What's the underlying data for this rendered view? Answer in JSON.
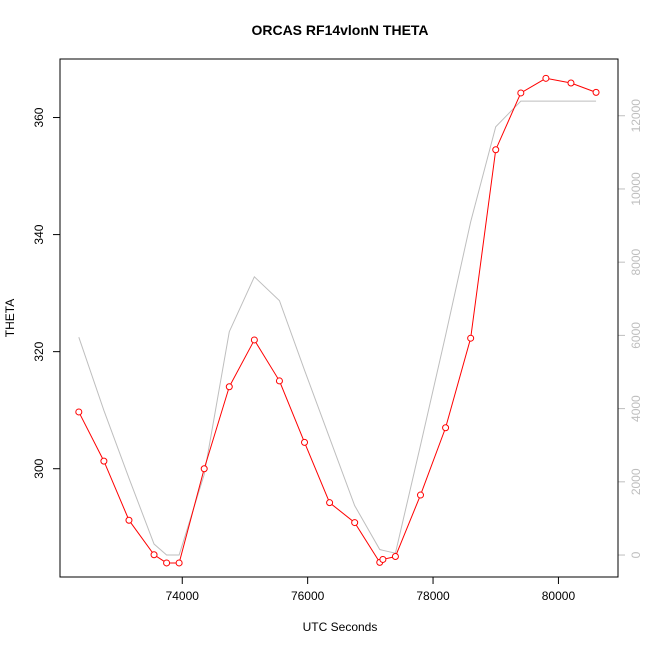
{
  "chart_data": {
    "type": "line",
    "title": "ORCAS RF14vlonN THETA",
    "xlabel": "UTC Seconds",
    "ylabel": "THETA",
    "xlim": [
      72050,
      80950
    ],
    "ylim": [
      281.5,
      370
    ],
    "x_ticks": [
      74000,
      76000,
      78000,
      80000
    ],
    "x_tick_labels": [
      "74000",
      "76000",
      "78000",
      "80000"
    ],
    "y_ticks": [
      300,
      320,
      340,
      360
    ],
    "y_tick_labels": [
      "300",
      "320",
      "340",
      "360"
    ],
    "y2_lim": [
      -600,
      13550
    ],
    "y2_ticks": [
      0,
      2000,
      4000,
      6000,
      8000,
      10000,
      12000
    ],
    "y2_tick_labels": [
      "0",
      "2000",
      "4000",
      "6000",
      "8000",
      "10000",
      "12000"
    ],
    "colors": {
      "theta": "#ff0000",
      "altitude": "#bebebe",
      "axis": "#000000",
      "right_axis": "#bebebe"
    },
    "series": [
      {
        "axis": "left",
        "marker": "open-circle",
        "x": [
          72350,
          72750,
          73150,
          73550,
          73750,
          73950,
          74350,
          74750,
          75150,
          75550,
          75950,
          76350,
          76750,
          77150,
          77200,
          77400,
          77800,
          78200,
          78600,
          79000,
          79400,
          79800,
          80200,
          80600
        ],
        "values": [
          309.7,
          301.3,
          291.2,
          285.3,
          283.9,
          283.9,
          300.0,
          314.0,
          322.0,
          315.0,
          304.5,
          294.2,
          290.8,
          284.0,
          284.5,
          285.0,
          295.5,
          307.0,
          322.3,
          354.5,
          364.2,
          366.7,
          365.9,
          364.3
        ]
      },
      {
        "axis": "right",
        "marker": "none",
        "x": [
          72350,
          72750,
          73150,
          73550,
          73750,
          73950,
          74350,
          74750,
          75150,
          75550,
          75950,
          76350,
          76750,
          77150,
          77400,
          77800,
          78200,
          78600,
          79000,
          79400,
          79800,
          80200,
          80600
        ],
        "values": [
          5950,
          3950,
          2100,
          300,
          0,
          0,
          2200,
          6100,
          7600,
          6950,
          5050,
          3200,
          1350,
          150,
          50,
          3000,
          6000,
          9100,
          11700,
          12400,
          12400,
          12400,
          12400
        ]
      }
    ]
  }
}
